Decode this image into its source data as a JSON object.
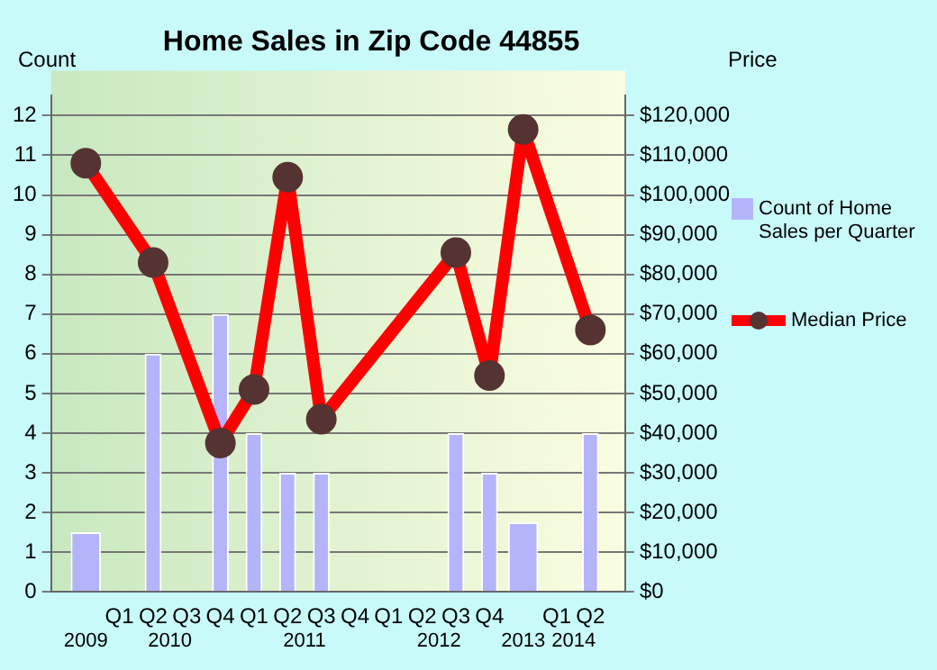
{
  "chart_data": {
    "type": "bar",
    "title": "Home Sales in Zip Code 44855",
    "ylabel": "Count",
    "y2label": "Price",
    "categories": [
      null,
      "Q1",
      "Q2",
      "Q3",
      "Q4",
      "Q1",
      "Q2",
      "Q3",
      "Q4",
      "Q1",
      "Q2",
      "Q3",
      "Q4",
      null,
      "Q1",
      "Q2"
    ],
    "annotations": [
      "2009",
      "2010",
      "2011",
      "2012",
      "2013",
      "2014"
    ],
    "ylim": [
      0,
      12.5
    ],
    "yticks": [
      0,
      1,
      2,
      3,
      4,
      5,
      6,
      7,
      8,
      9,
      10,
      11,
      12
    ],
    "y2lim": [
      0,
      125000
    ],
    "y2ticks": [
      {
        "value": 0,
        "label": "$0"
      },
      {
        "value": 10000,
        "label": "$10,000"
      },
      {
        "value": 20000,
        "label": "$20,000"
      },
      {
        "value": 30000,
        "label": "$30,000"
      },
      {
        "value": 40000,
        "label": "$40,000"
      },
      {
        "value": 50000,
        "label": "$50,000"
      },
      {
        "value": 60000,
        "label": "$60,000"
      },
      {
        "value": 70000,
        "label": "$70,000"
      },
      {
        "value": 80000,
        "label": "$80,000"
      },
      {
        "value": 90000,
        "label": "$90,000"
      },
      {
        "value": 100000,
        "label": "$100,000"
      },
      {
        "value": 110000,
        "label": "$110,000"
      },
      {
        "value": 120000,
        "label": "$120,000"
      }
    ],
    "series": [
      {
        "name": "Count of Home Sales per Quarter",
        "color": "#b4b4fa",
        "values": [
          1.5,
          null,
          6,
          null,
          7,
          4,
          3,
          3,
          null,
          null,
          null,
          4,
          3,
          1.75,
          null,
          4
        ]
      },
      {
        "type": "line",
        "name": "Median Price",
        "color": "#ff0000",
        "axis": "y2",
        "values": [
          108000,
          null,
          83000,
          null,
          37500,
          51000,
          104500,
          43500,
          null,
          null,
          null,
          85500,
          54500,
          116500,
          null,
          66000
        ]
      }
    ],
    "grid": "y",
    "legend": "right",
    "marker": "circle"
  }
}
